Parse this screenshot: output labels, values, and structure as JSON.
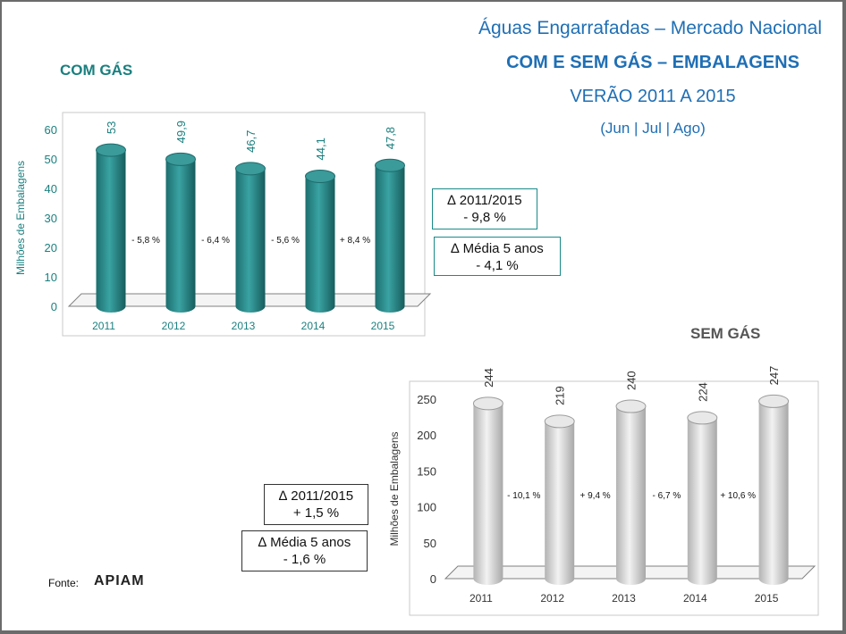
{
  "header": {
    "line1": "Águas Engarrafadas – Mercado Nacional",
    "line2": "COM E SEM GÁS – EMBALAGENS",
    "line3": "VERÃO 2011  A 2015",
    "line4": "(Jun | Jul | Ago)"
  },
  "com_gas": {
    "title": "COM GÁS",
    "box_delta_title": "∆ 2011/2015",
    "box_delta_value": "- 9,8 %",
    "box_avg_title": "∆ Média 5 anos",
    "box_avg_value": "- 4,1 %"
  },
  "sem_gas": {
    "title": "SEM GÁS",
    "box_delta_title": "∆ 2011/2015",
    "box_delta_value": "+ 1,5 %",
    "box_avg_title": "∆ Média 5 anos",
    "box_avg_value": "- 1,6 %"
  },
  "footer": {
    "source_label": "Fonte:",
    "logo_text": "APIAM"
  },
  "colors": {
    "title_blue": "#1f6fb5",
    "teal": "#1a7f7f",
    "teal_bar": "#2a8a8a",
    "grey_bar": "#d0d0d0"
  },
  "chart_data": [
    {
      "type": "bar",
      "title": "COM GÁS",
      "categories": [
        "2011",
        "2012",
        "2013",
        "2014",
        "2015"
      ],
      "values": [
        53,
        49.9,
        46.7,
        44.1,
        47.8
      ],
      "value_labels": [
        "53",
        "49,9",
        "46,7",
        "44,1",
        "47,8"
      ],
      "changes": [
        "- 5,8 %",
        "- 6,4 %",
        "- 5,6 %",
        "+ 8,4 %"
      ],
      "ylabel": "Milhões de Embalagens",
      "ylim": [
        0,
        60
      ],
      "yticks": [
        0,
        10,
        20,
        30,
        40,
        50,
        60
      ],
      "grid": false
    },
    {
      "type": "bar",
      "title": "SEM GÁS",
      "categories": [
        "2011",
        "2012",
        "2013",
        "2014",
        "2015"
      ],
      "values": [
        244,
        219,
        240,
        224,
        247
      ],
      "value_labels": [
        "244",
        "219",
        "240",
        "224",
        "247"
      ],
      "changes": [
        "- 10,1 %",
        "+ 9,4 %",
        "- 6,7 %",
        "+ 10,6 %"
      ],
      "ylabel": "Milhões de Embalagens",
      "ylim": [
        0,
        250
      ],
      "yticks": [
        0,
        50,
        100,
        150,
        200,
        250
      ],
      "grid": false
    }
  ]
}
